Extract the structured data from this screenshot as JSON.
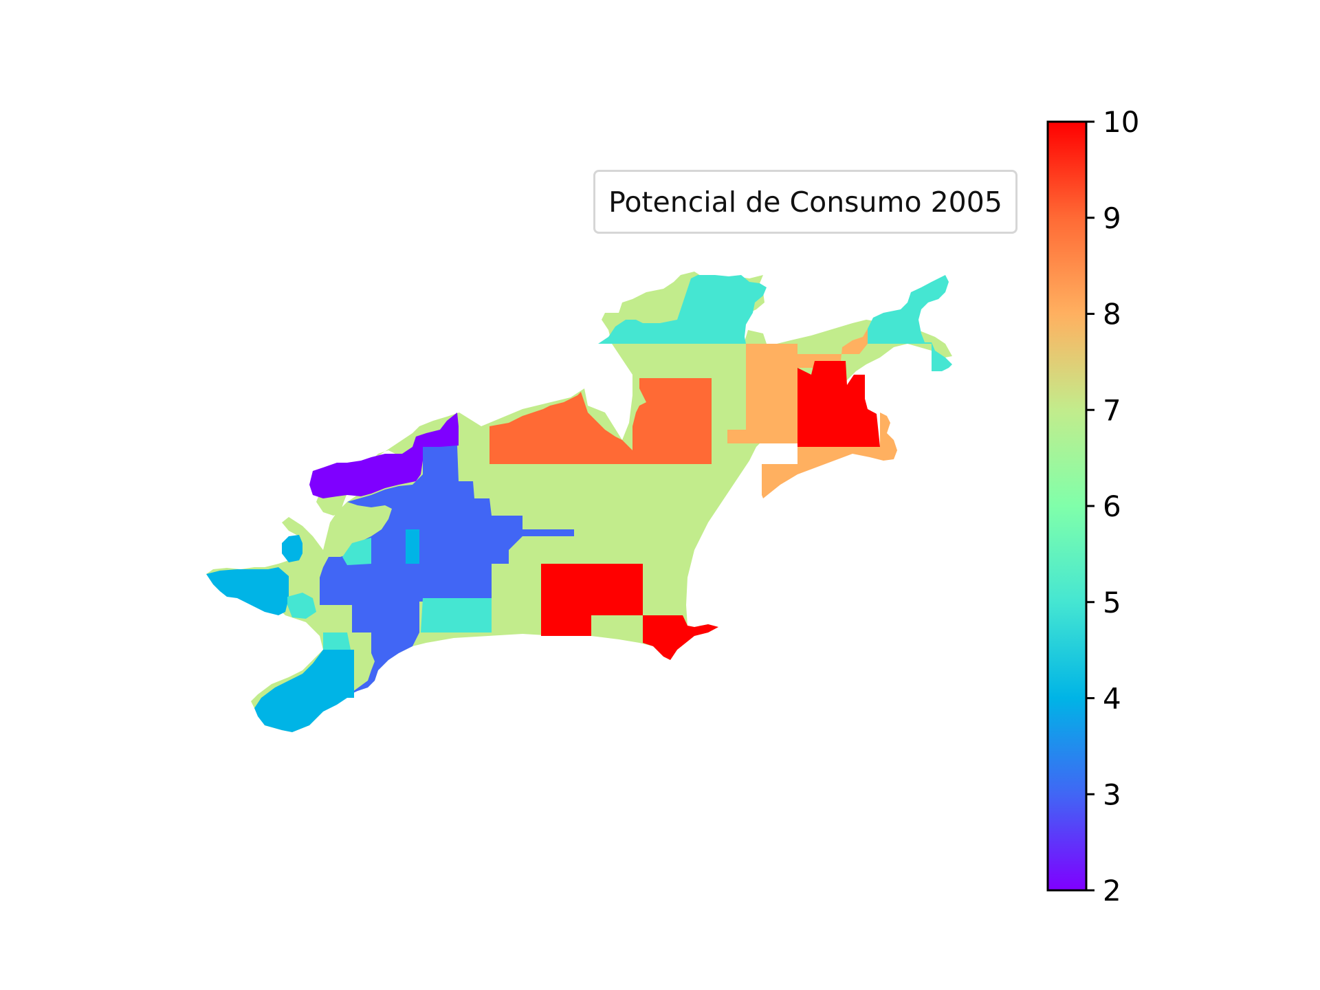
{
  "legend": {
    "label": "Potencial de Consumo 2005"
  },
  "colorbar": {
    "min": 2,
    "max": 10,
    "ticks": [
      "2",
      "3",
      "4",
      "5",
      "6",
      "7",
      "8",
      "9",
      "10"
    ],
    "colormap": "rainbow",
    "stops": [
      "#7f00ff",
      "#4166f5",
      "#00b4e6",
      "#45e6d2",
      "#80ffaa",
      "#c2ec8c",
      "#ffb060",
      "#ff6a35",
      "#ff0000"
    ]
  },
  "map": {
    "region_values": [
      {
        "region": "northwest-strip",
        "value": 2.0
      },
      {
        "region": "western-core",
        "value": 3.0
      },
      {
        "region": "southwest-tip",
        "value": 4.0
      },
      {
        "region": "northeast-top",
        "value": 5.0
      },
      {
        "region": "central-belt",
        "value": 7.0
      },
      {
        "region": "east-block",
        "value": 8.0
      },
      {
        "region": "north-central-block",
        "value": 9.0
      },
      {
        "region": "southern-block",
        "value": 10.0
      },
      {
        "region": "northeast-block",
        "value": 10.0
      }
    ]
  }
}
